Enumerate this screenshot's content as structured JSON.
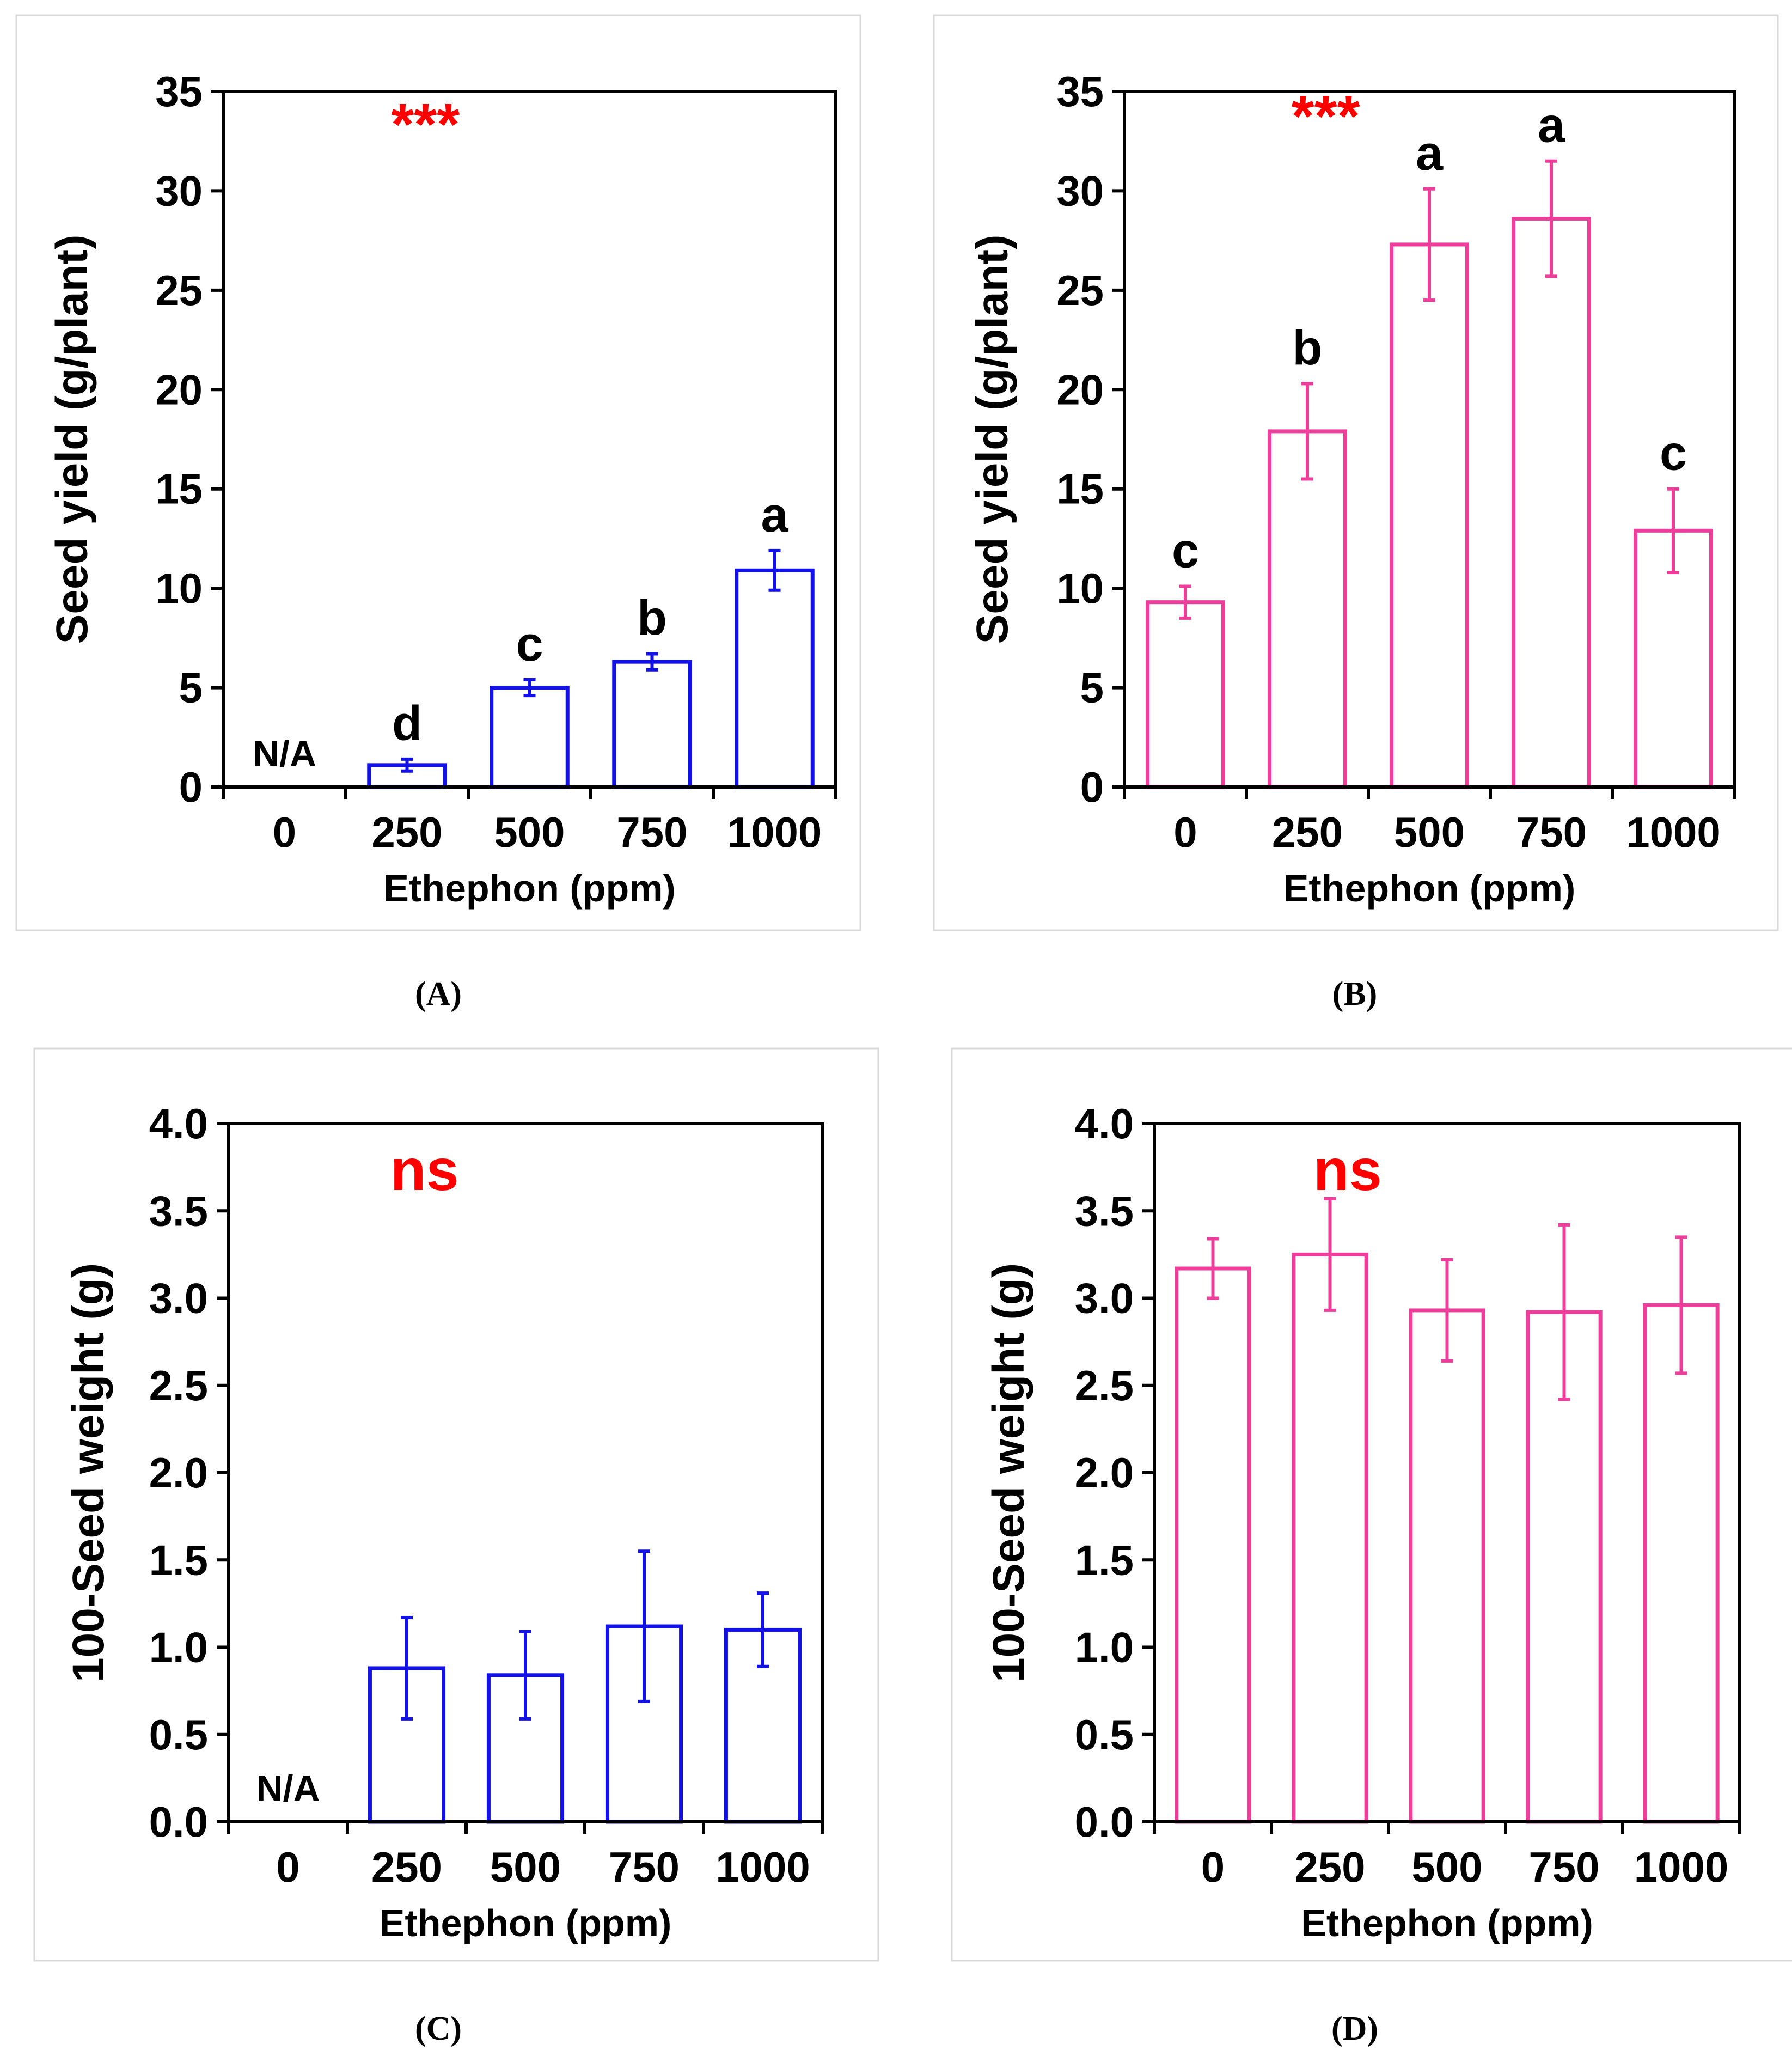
{
  "colors": {
    "series_a": "#1212e6",
    "series_b": "#ec3e9a",
    "significance": "#ff0000"
  },
  "chart_data": [
    {
      "panel": "A",
      "caption": "(A)",
      "type": "bar",
      "categories": [
        "0",
        "250",
        "500",
        "750",
        "1000"
      ],
      "values": [
        null,
        1.1,
        5.0,
        6.3,
        10.9
      ],
      "errors": [
        null,
        0.3,
        0.4,
        0.4,
        1.0
      ],
      "letters": [
        "",
        "d",
        "c",
        "b",
        "a"
      ],
      "missing_label": "N/A",
      "significance": "***",
      "ylabel": "Seed yield (g/plant)",
      "xlabel": "Ethephon (ppm)",
      "ylim": [
        0,
        35
      ],
      "yticks": [
        "0",
        "5",
        "10",
        "15",
        "20",
        "25",
        "30",
        "35"
      ],
      "color": "#1212e6"
    },
    {
      "panel": "B",
      "caption": "(B)",
      "type": "bar",
      "categories": [
        "0",
        "250",
        "500",
        "750",
        "1000"
      ],
      "values": [
        9.3,
        17.9,
        27.3,
        28.6,
        12.9
      ],
      "errors": [
        0.8,
        2.4,
        2.8,
        2.9,
        2.1
      ],
      "letters": [
        "c",
        "b",
        "a",
        "a",
        "c"
      ],
      "significance": "***",
      "ylabel": "Seed yield (g/plant)",
      "xlabel": "Ethephon (ppm)",
      "ylim": [
        0,
        35
      ],
      "yticks": [
        "0",
        "5",
        "10",
        "15",
        "20",
        "25",
        "30",
        "35"
      ],
      "color": "#ec3e9a"
    },
    {
      "panel": "C",
      "caption": "(C)",
      "type": "bar",
      "categories": [
        "0",
        "250",
        "500",
        "750",
        "1000"
      ],
      "values": [
        null,
        0.88,
        0.84,
        1.12,
        1.1
      ],
      "errors": [
        null,
        0.29,
        0.25,
        0.43,
        0.21
      ],
      "letters": [
        "",
        "",
        "",
        "",
        ""
      ],
      "missing_label": "N/A",
      "significance": "ns",
      "ylabel": "100-Seed weight (g)",
      "xlabel": "Ethephon (ppm)",
      "ylim": [
        0,
        4
      ],
      "yticks": [
        "0.0",
        "0.5",
        "1.0",
        "1.5",
        "2.0",
        "2.5",
        "3.0",
        "3.5",
        "4.0"
      ],
      "color": "#1212e6"
    },
    {
      "panel": "D",
      "caption": "(D)",
      "type": "bar",
      "categories": [
        "0",
        "250",
        "500",
        "750",
        "1000"
      ],
      "values": [
        3.17,
        3.25,
        2.93,
        2.92,
        2.96
      ],
      "errors": [
        0.17,
        0.32,
        0.29,
        0.5,
        0.39
      ],
      "letters": [
        "",
        "",
        "",
        "",
        ""
      ],
      "significance": "ns",
      "ylabel": "100-Seed weight (g)",
      "xlabel": "Ethephon (ppm)",
      "ylim": [
        0,
        4
      ],
      "yticks": [
        "0.0",
        "0.5",
        "1.0",
        "1.5",
        "2.0",
        "2.5",
        "3.0",
        "3.5",
        "4.0"
      ],
      "color": "#ec3e9a"
    }
  ]
}
